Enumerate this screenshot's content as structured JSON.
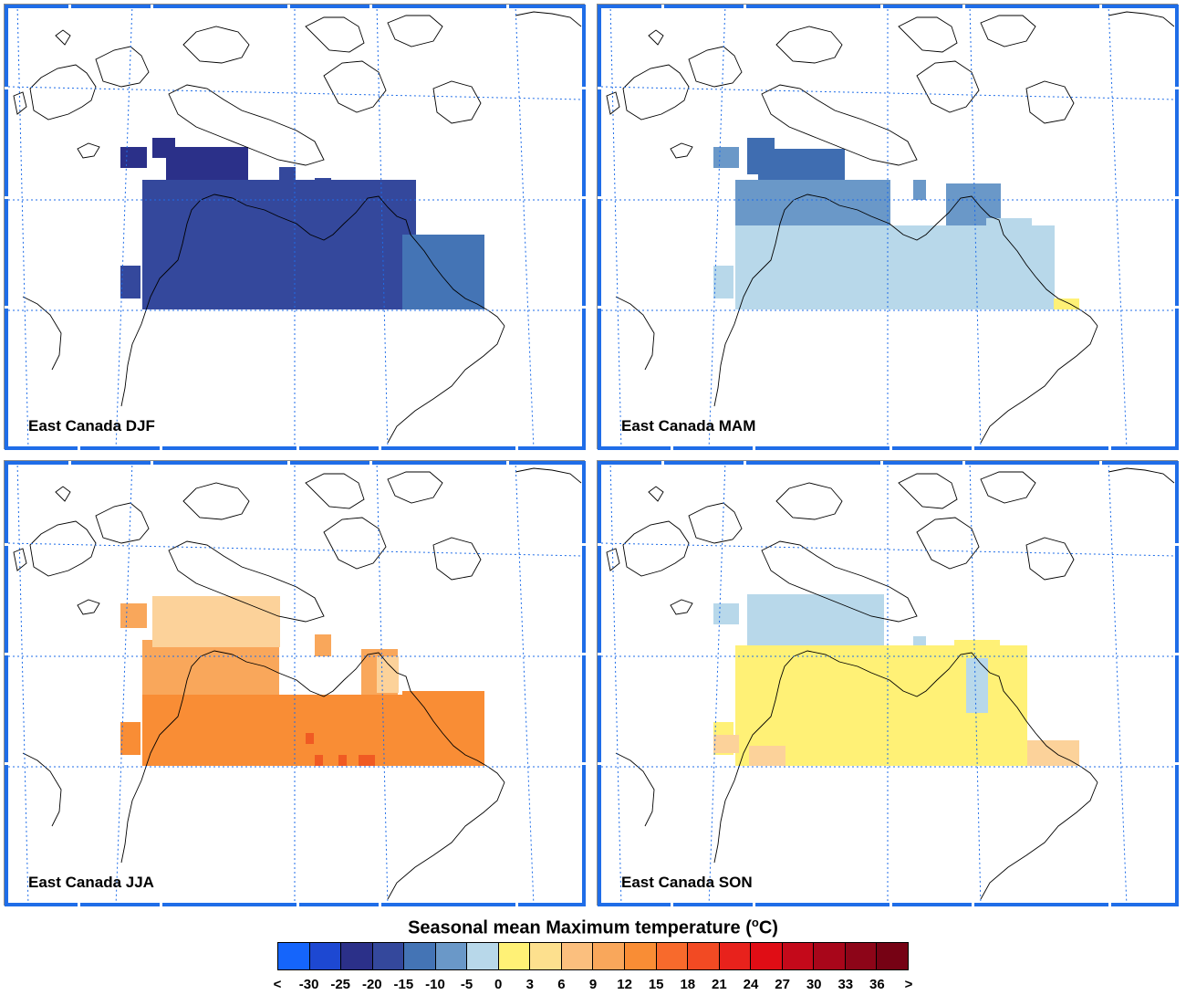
{
  "panels": [
    {
      "label": "East Canada DJF",
      "fills": [
        [
          "#2b3089",
          131,
          160,
          29,
          23
        ],
        [
          "#2b3089",
          166,
          150,
          25,
          22
        ],
        [
          "#2b3089",
          181,
          160,
          90,
          36
        ],
        [
          "#34489c",
          155,
          196,
          300,
          142
        ],
        [
          "#34489c",
          131,
          290,
          22,
          36
        ],
        [
          "#34489c",
          305,
          182,
          18,
          18
        ],
        [
          "#34489c",
          344,
          194,
          18,
          24
        ],
        [
          "#34489c",
          395,
          200,
          40,
          46
        ],
        [
          "#4474b5",
          440,
          256,
          90,
          82
        ]
      ]
    },
    {
      "label": "East Canada MAM",
      "fills": [
        [
          "#6a98c8",
          781,
          160,
          28,
          23
        ],
        [
          "#6a98c8",
          805,
          196,
          170,
          104
        ],
        [
          "#6a98c8",
          1036,
          200,
          60,
          90
        ],
        [
          "#6a98c8",
          1000,
          196,
          14,
          22
        ],
        [
          "#3f6db1",
          818,
          150,
          30,
          40
        ],
        [
          "#3f6db1",
          830,
          162,
          95,
          34
        ],
        [
          "#b8d8ea",
          781,
          290,
          22,
          36
        ],
        [
          "#b8d8ea",
          805,
          246,
          350,
          92
        ],
        [
          "#b8d8ea",
          1080,
          238,
          50,
          54
        ],
        [
          "#fff176",
          1154,
          326,
          28,
          12
        ]
      ]
    },
    {
      "label": "East Canada JJA",
      "fills": [
        [
          "#f9a75b",
          131,
          660,
          29,
          27
        ],
        [
          "#f9a75b",
          155,
          700,
          150,
          80
        ],
        [
          "#f9a75b",
          344,
          694,
          18,
          24
        ],
        [
          "#f9a75b",
          395,
          710,
          40,
          80
        ],
        [
          "#fcd29a",
          166,
          652,
          140,
          56
        ],
        [
          "#fcd29a",
          412,
          718,
          24,
          40
        ],
        [
          "#f98d35",
          131,
          790,
          22,
          36
        ],
        [
          "#f98d35",
          155,
          760,
          300,
          78
        ],
        [
          "#f98d35",
          440,
          756,
          90,
          82
        ],
        [
          "#f05a23",
          334,
          802,
          9,
          12
        ],
        [
          "#f05a23",
          344,
          826,
          9,
          12
        ],
        [
          "#f05a23",
          370,
          826,
          9,
          12
        ],
        [
          "#f05a23",
          392,
          826,
          18,
          12
        ]
      ]
    },
    {
      "label": "East Canada SON",
      "fills": [
        [
          "#b8d8ea",
          781,
          660,
          28,
          23
        ],
        [
          "#b8d8ea",
          818,
          650,
          150,
          60
        ],
        [
          "#b8d8ea",
          1000,
          696,
          14,
          22
        ],
        [
          "#fff176",
          781,
          790,
          22,
          36
        ],
        [
          "#fff176",
          805,
          706,
          320,
          132
        ],
        [
          "#fff176",
          1045,
          700,
          50,
          40
        ],
        [
          "#fff176",
          1085,
          740,
          40,
          80
        ],
        [
          "#b8d8ea",
          1058,
          720,
          24,
          60
        ],
        [
          "#fcd29a",
          781,
          804,
          28,
          20
        ],
        [
          "#fcd29a",
          1125,
          810,
          57,
          28
        ],
        [
          "#fcd29a",
          820,
          816,
          40,
          22
        ]
      ]
    }
  ],
  "legend": {
    "title": "Seasonal mean Maximum temperature (",
    "title_unit_sup": "o",
    "title_unit": "C)",
    "colors": [
      "#1565fb",
      "#1d48d2",
      "#2b3089",
      "#34489c",
      "#4474b5",
      "#6a98c8",
      "#b8d8ea",
      "#fff176",
      "#fde08e",
      "#fbbf7e",
      "#f9a75b",
      "#f98d35",
      "#f86a2c",
      "#f24a23",
      "#e8221c",
      "#e00d15",
      "#c4091a",
      "#a8061a",
      "#8d0518",
      "#760214"
    ],
    "ticks": [
      "<",
      "-30",
      "-25",
      "-20",
      "-15",
      "-10",
      "-5",
      "0",
      "3",
      "6",
      "9",
      "12",
      "15",
      "18",
      "21",
      "24",
      "27",
      "30",
      "33",
      "36",
      ">"
    ]
  }
}
